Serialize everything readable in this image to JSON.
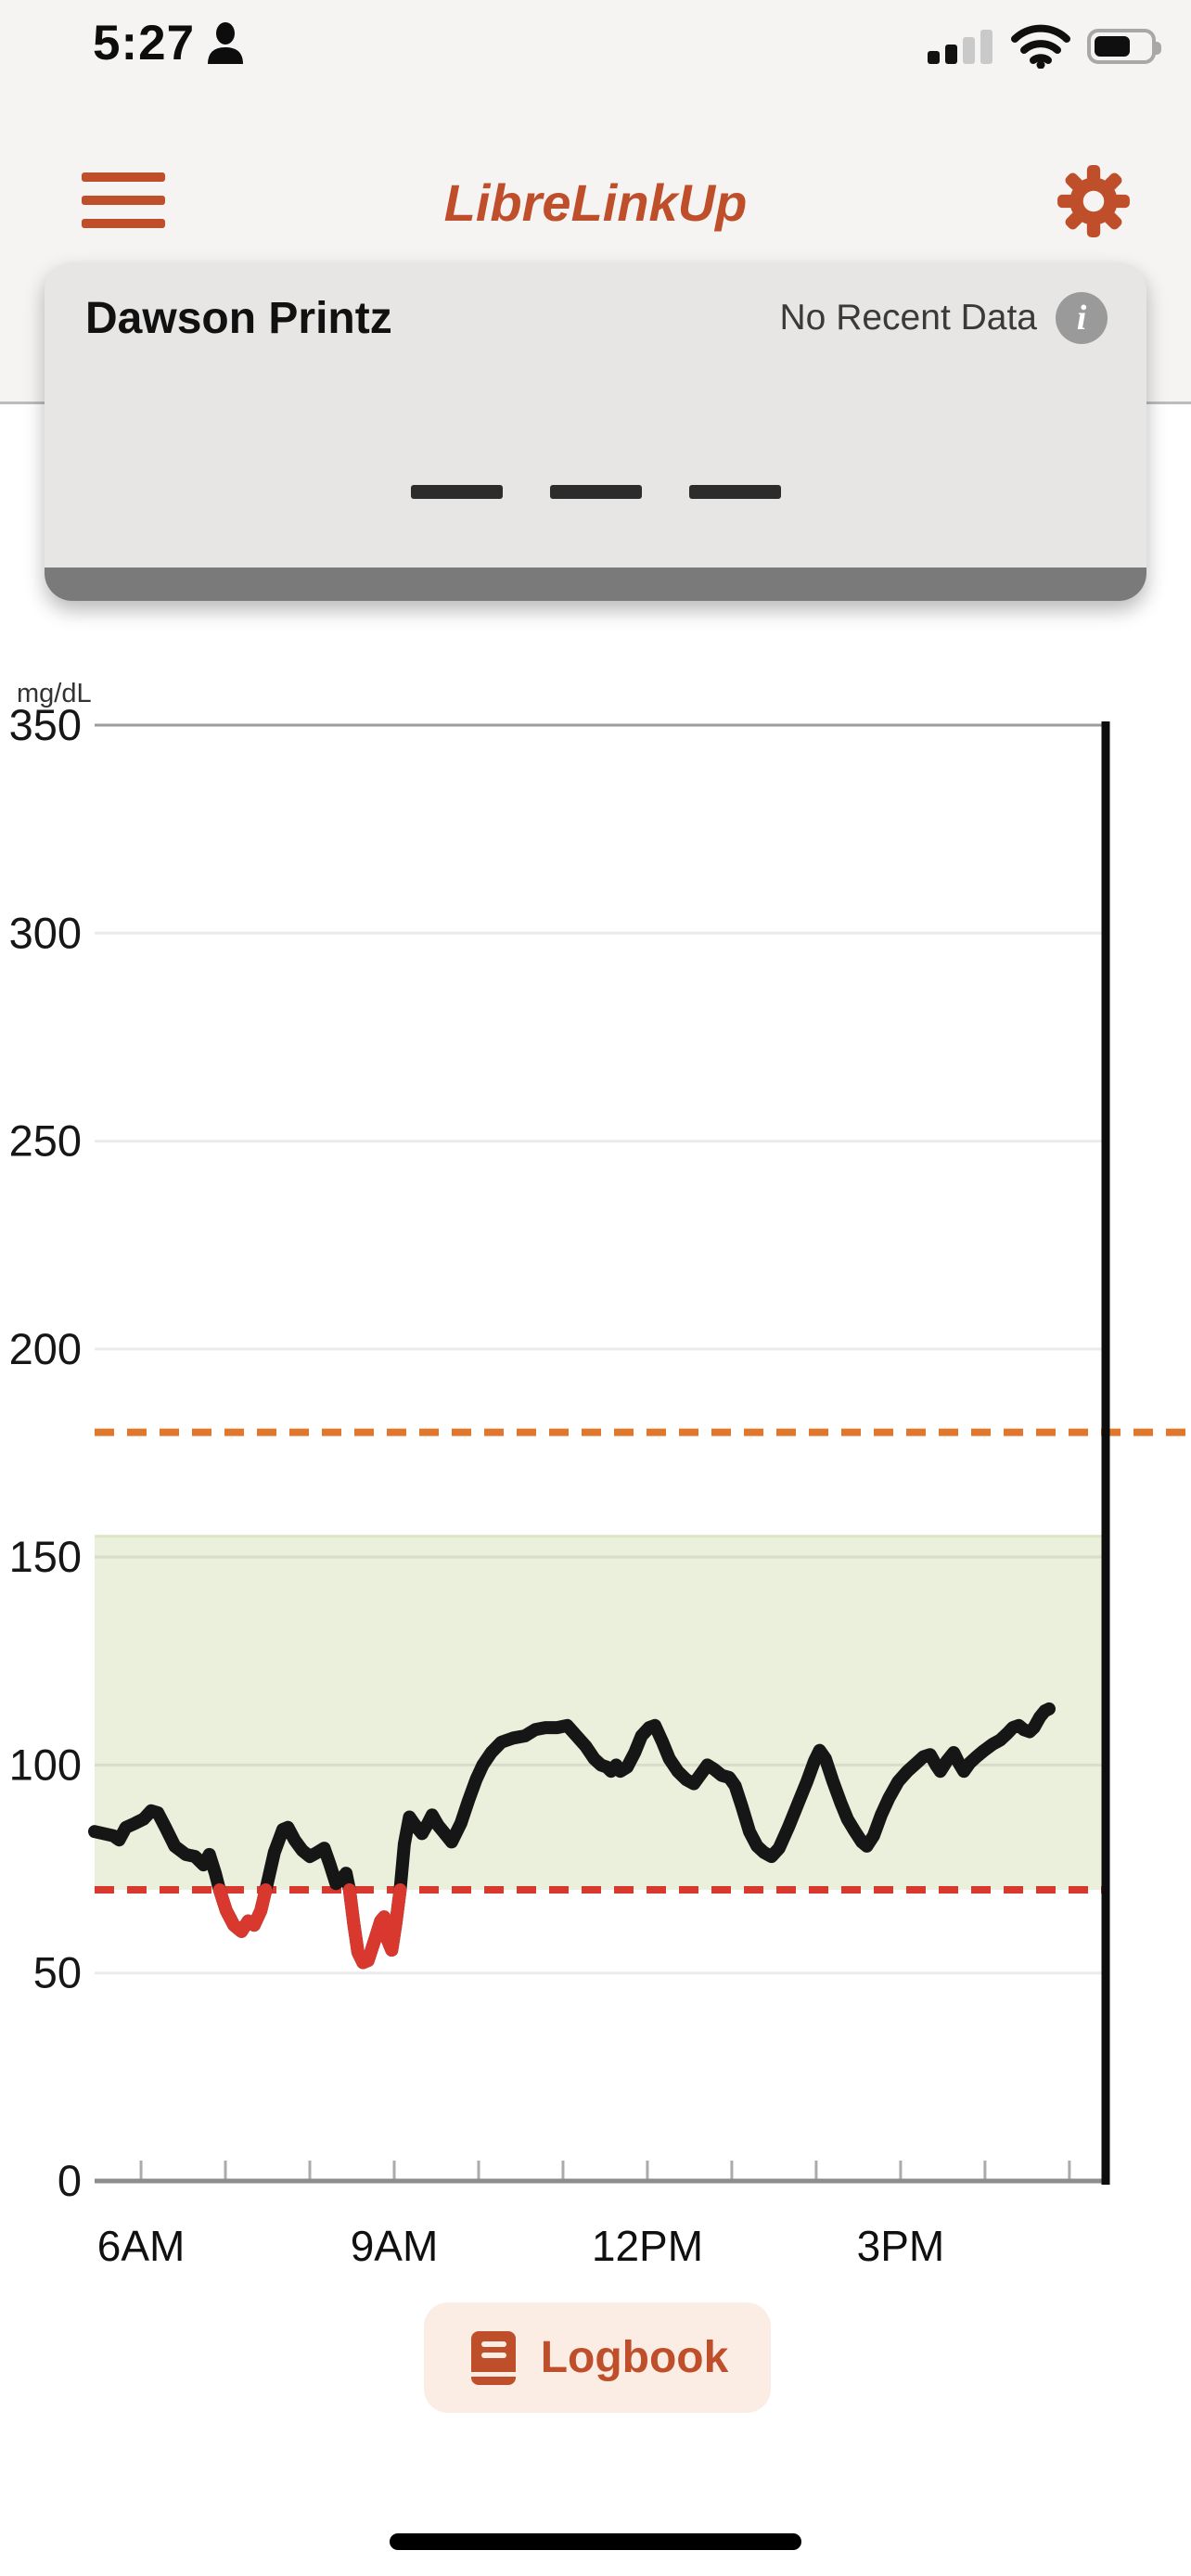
{
  "status_bar": {
    "time": "5:27",
    "icons": [
      "focus-person-icon",
      "cellular-signal-icon",
      "wifi-icon",
      "battery-icon"
    ],
    "cellular_bars_filled": 2,
    "cellular_bars_total": 4
  },
  "header": {
    "title": "LibreLinkUp",
    "icons": [
      "menu-icon",
      "gear-icon"
    ]
  },
  "patient_card": {
    "name": "Dawson Printz",
    "status": "No Recent Data",
    "info_icon_glyph": "i",
    "placeholder_dash_count": 3
  },
  "logbook": {
    "label": "Logbook",
    "icon": "book-icon"
  },
  "colors": {
    "brand_orange": "#bf4f2b",
    "low_red": "#d8382d",
    "high_orange": "#e1772d",
    "target_band_green": "#eaf0db",
    "trace_black": "#161616",
    "top_area_bg": "#f5f4f3",
    "card_bg": "#e7e6e5",
    "logbook_bg": "#fbece4"
  },
  "chart_data": {
    "type": "line",
    "unit_label": "mg/dL",
    "ylim": [
      0,
      350
    ],
    "y_ticks": [
      0,
      50,
      100,
      150,
      200,
      250,
      300,
      350
    ],
    "xlim_hours": [
      5.45,
      17.43
    ],
    "now_line_hour": 17.43,
    "x_minor_ticks_hours": [
      6,
      7,
      8,
      9,
      10,
      11,
      12,
      13,
      14,
      15,
      16,
      17
    ],
    "x_tick_labels": [
      {
        "hour": 6,
        "label": "6AM"
      },
      {
        "hour": 9,
        "label": "9AM"
      },
      {
        "hour": 12,
        "label": "12PM"
      },
      {
        "hour": 15,
        "label": "3PM"
      }
    ],
    "target_range": {
      "low": 70,
      "high": 155
    },
    "high_threshold_line": {
      "value": 180,
      "style": "dashed",
      "color": "#e1772d",
      "extends_past_now_line": true
    },
    "low_threshold_line": {
      "value": 70,
      "style": "dashed",
      "color": "#d8382d",
      "extends_past_now_line": false
    },
    "grid": true,
    "legend": "none",
    "series": [
      {
        "name": "glucose",
        "color": "#161616",
        "below_threshold_color": "#d8382d",
        "points": [
          [
            5.45,
            84
          ],
          [
            5.56,
            83.5
          ],
          [
            5.67,
            83
          ],
          [
            5.74,
            82
          ],
          [
            5.82,
            85
          ],
          [
            5.93,
            86
          ],
          [
            6.03,
            87
          ],
          [
            6.12,
            89
          ],
          [
            6.2,
            88.5
          ],
          [
            6.29,
            85
          ],
          [
            6.4,
            80.5
          ],
          [
            6.53,
            78.5
          ],
          [
            6.64,
            78
          ],
          [
            6.74,
            76
          ],
          [
            6.81,
            78.5
          ],
          [
            6.88,
            74
          ],
          [
            6.93,
            70
          ],
          [
            7.01,
            65
          ],
          [
            7.1,
            61.5
          ],
          [
            7.19,
            60
          ],
          [
            7.27,
            62.5
          ],
          [
            7.34,
            61.5
          ],
          [
            7.42,
            65
          ],
          [
            7.49,
            71
          ],
          [
            7.58,
            79
          ],
          [
            7.68,
            84.5
          ],
          [
            7.74,
            85
          ],
          [
            7.82,
            82
          ],
          [
            7.91,
            79.5
          ],
          [
            8.0,
            78
          ],
          [
            8.09,
            79
          ],
          [
            8.17,
            80
          ],
          [
            8.24,
            76
          ],
          [
            8.31,
            71.5
          ],
          [
            8.37,
            72.5
          ],
          [
            8.43,
            74
          ],
          [
            8.47,
            70
          ],
          [
            8.52,
            62
          ],
          [
            8.57,
            55
          ],
          [
            8.63,
            52.5
          ],
          [
            8.69,
            53
          ],
          [
            8.77,
            58
          ],
          [
            8.84,
            62.5
          ],
          [
            8.88,
            63.5
          ],
          [
            8.92,
            58
          ],
          [
            8.97,
            55.5
          ],
          [
            9.02,
            62
          ],
          [
            9.07,
            70
          ],
          [
            9.12,
            81
          ],
          [
            9.18,
            87.5
          ],
          [
            9.25,
            85.5
          ],
          [
            9.33,
            83.5
          ],
          [
            9.4,
            86
          ],
          [
            9.45,
            88
          ],
          [
            9.52,
            85.5
          ],
          [
            9.58,
            84
          ],
          [
            9.68,
            81.5
          ],
          [
            9.79,
            86
          ],
          [
            9.88,
            91.5
          ],
          [
            9.97,
            96.5
          ],
          [
            10.05,
            100
          ],
          [
            10.15,
            103
          ],
          [
            10.27,
            105.5
          ],
          [
            10.41,
            106.5
          ],
          [
            10.55,
            107
          ],
          [
            10.67,
            108.5
          ],
          [
            10.79,
            109
          ],
          [
            10.93,
            109
          ],
          [
            11.05,
            109.5
          ],
          [
            11.16,
            107
          ],
          [
            11.27,
            104.5
          ],
          [
            11.37,
            101.5
          ],
          [
            11.45,
            100
          ],
          [
            11.52,
            99.5
          ],
          [
            11.57,
            98.5
          ],
          [
            11.63,
            100
          ],
          [
            11.68,
            98.5
          ],
          [
            11.76,
            99.5
          ],
          [
            11.85,
            103
          ],
          [
            11.93,
            107
          ],
          [
            12.02,
            109
          ],
          [
            12.09,
            109.5
          ],
          [
            12.18,
            105.5
          ],
          [
            12.26,
            101.5
          ],
          [
            12.36,
            98.5
          ],
          [
            12.46,
            96.5
          ],
          [
            12.55,
            95.5
          ],
          [
            12.64,
            98
          ],
          [
            12.71,
            100
          ],
          [
            12.79,
            99
          ],
          [
            12.88,
            97.5
          ],
          [
            12.97,
            97
          ],
          [
            13.04,
            95
          ],
          [
            13.12,
            90
          ],
          [
            13.21,
            84
          ],
          [
            13.3,
            80.5
          ],
          [
            13.38,
            79
          ],
          [
            13.47,
            78
          ],
          [
            13.56,
            80
          ],
          [
            13.67,
            85
          ],
          [
            13.78,
            90.5
          ],
          [
            13.89,
            96
          ],
          [
            13.98,
            101
          ],
          [
            14.04,
            103.5
          ],
          [
            14.11,
            101.5
          ],
          [
            14.2,
            96
          ],
          [
            14.29,
            91
          ],
          [
            14.37,
            87
          ],
          [
            14.46,
            84
          ],
          [
            14.54,
            81.5
          ],
          [
            14.6,
            80.5
          ],
          [
            14.68,
            83
          ],
          [
            14.77,
            88
          ],
          [
            14.86,
            92
          ],
          [
            14.97,
            96
          ],
          [
            15.08,
            98.5
          ],
          [
            15.19,
            100.5
          ],
          [
            15.27,
            102
          ],
          [
            15.35,
            102.5
          ],
          [
            15.42,
            100
          ],
          [
            15.47,
            98.5
          ],
          [
            15.55,
            101
          ],
          [
            15.63,
            103
          ],
          [
            15.69,
            100.5
          ],
          [
            15.75,
            98.5
          ],
          [
            15.82,
            100.5
          ],
          [
            15.9,
            102
          ],
          [
            15.99,
            103.5
          ],
          [
            16.09,
            105
          ],
          [
            16.18,
            106
          ],
          [
            16.26,
            107.5
          ],
          [
            16.33,
            109
          ],
          [
            16.4,
            109.5
          ],
          [
            16.46,
            108.5
          ],
          [
            16.53,
            108
          ],
          [
            16.58,
            109
          ],
          [
            16.65,
            111.5
          ],
          [
            16.71,
            113
          ],
          [
            16.76,
            113.5
          ]
        ]
      }
    ]
  }
}
